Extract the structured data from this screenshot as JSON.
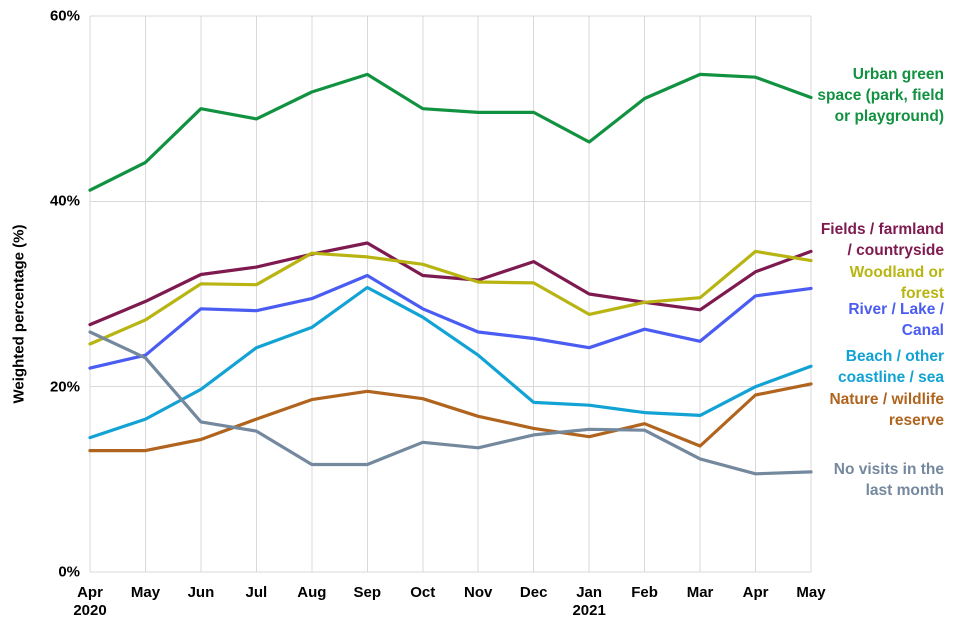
{
  "page": {
    "background": "#ffffff",
    "grid_color": "#d9d9d9"
  },
  "y_axis": {
    "title": "Weighted percentage (%)",
    "ticks": [
      {
        "label": "60%",
        "value": 60
      },
      {
        "label": "40%",
        "value": 40
      },
      {
        "label": "20%",
        "value": 20
      },
      {
        "label": "0%",
        "value": 0
      }
    ]
  },
  "x_axis": {
    "labels": [
      "Apr\n2020",
      "May",
      "Jun",
      "Jul",
      "Aug",
      "Sep",
      "Oct",
      "Nov",
      "Dec",
      "Jan\n2021",
      "Feb",
      "Mar",
      "Apr",
      "May"
    ]
  },
  "chart_data": {
    "type": "line",
    "x": [
      "Apr 2020",
      "May",
      "Jun",
      "Jul",
      "Aug",
      "Sep",
      "Oct",
      "Nov",
      "Dec",
      "Jan 2021",
      "Feb",
      "Mar",
      "Apr",
      "May"
    ],
    "ylabel": "Weighted percentage (%)",
    "ylim": [
      0,
      60
    ],
    "grid": true,
    "legend_position": "right",
    "series": [
      {
        "name": "Urban green space (park, field or playground)",
        "legend_label": "Urban green\nspace (park, field\nor playground)",
        "color": "#119240",
        "values": [
          41.2,
          44.2,
          50.0,
          48.9,
          51.8,
          53.7,
          50.0,
          49.6,
          49.6,
          46.4,
          51.1,
          53.7,
          53.4,
          51.2
        ]
      },
      {
        "name": "Fields / farmland / countryside",
        "legend_label": "Fields / farmland\n/ countryside",
        "color": "#7e1a4f",
        "values": [
          26.7,
          29.2,
          32.1,
          32.9,
          34.3,
          35.5,
          32.0,
          31.5,
          33.5,
          30.0,
          29.1,
          28.3,
          32.4,
          34.6
        ]
      },
      {
        "name": "Woodland or forest",
        "legend_label": "Woodland or\nforest",
        "color": "#b8b512",
        "values": [
          24.6,
          27.2,
          31.1,
          31.0,
          34.4,
          34.0,
          33.2,
          31.3,
          31.2,
          27.8,
          29.1,
          29.6,
          34.6,
          33.6
        ]
      },
      {
        "name": "River / Lake / Canal",
        "legend_label": "River / Lake /\nCanal",
        "color": "#4a5cf2",
        "values": [
          22.0,
          23.4,
          28.4,
          28.2,
          29.5,
          32.0,
          28.4,
          25.9,
          25.2,
          24.2,
          26.2,
          24.9,
          29.8,
          30.6
        ]
      },
      {
        "name": "Beach / other coastline / sea",
        "legend_label": "Beach / other\ncoastline / sea",
        "color": "#12a3d4",
        "values": [
          14.5,
          16.5,
          19.7,
          24.2,
          26.4,
          30.7,
          27.5,
          23.4,
          18.3,
          18.0,
          17.2,
          16.9,
          20.0,
          22.2
        ]
      },
      {
        "name": "Nature / wildlife reserve",
        "legend_label": "Nature / wildlife\nreserve",
        "color": "#b0641d",
        "values": [
          13.1,
          13.1,
          14.3,
          16.5,
          18.6,
          19.5,
          18.7,
          16.8,
          15.5,
          14.6,
          16.0,
          13.6,
          19.1,
          20.3
        ]
      },
      {
        "name": "No visits in the last month",
        "legend_label": "No visits in the\nlast month",
        "color": "#74889e",
        "values": [
          25.9,
          23.1,
          16.2,
          15.2,
          11.6,
          11.6,
          14.0,
          13.4,
          14.8,
          15.4,
          15.3,
          12.2,
          10.6,
          10.8
        ]
      }
    ]
  }
}
